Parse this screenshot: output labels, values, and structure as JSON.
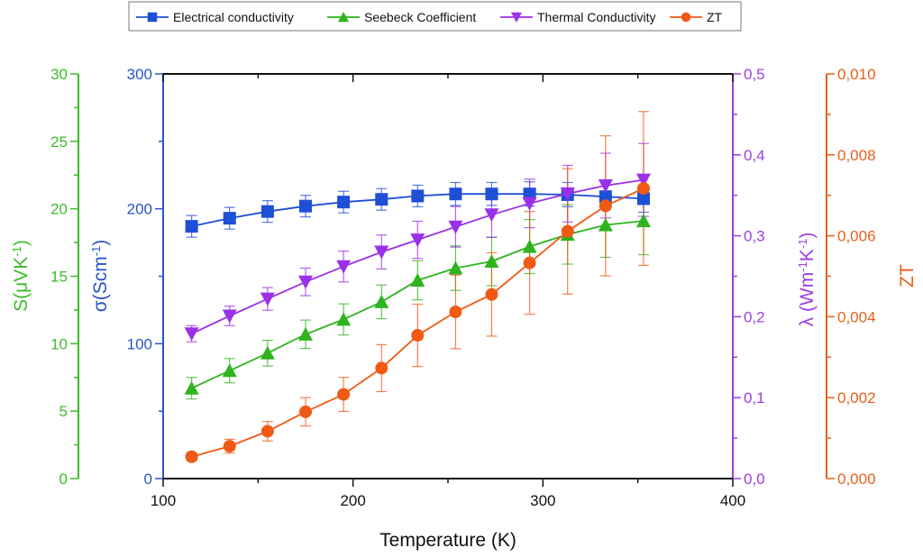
{
  "chart_data": {
    "type": "line",
    "title": "",
    "xlabel": "Temperature (K)",
    "xlim": [
      100,
      400
    ],
    "xticks": [
      "100",
      "200",
      "300",
      "400"
    ],
    "x": [
      115,
      135,
      155,
      175,
      195,
      215,
      234,
      254,
      273,
      293,
      313,
      333,
      353
    ],
    "legend": {
      "placement": "top-center",
      "entries": [
        "Electrical conductivity",
        "Seebeck Coefficient",
        "Thermal Conductivity",
        "ZT"
      ]
    },
    "axes": {
      "sigma": {
        "label_main": "σ(Scm",
        "label_sup": "-1",
        "label_end": ")",
        "ylim": [
          0,
          300
        ],
        "ticks": [
          "0",
          "100",
          "200",
          "300"
        ],
        "color": "#2a52c9"
      },
      "seebeck": {
        "label_main": "S(μVK",
        "label_sup": "-1",
        "label_end": ")",
        "ylim": [
          0,
          30
        ],
        "ticks": [
          "0",
          "5",
          "10",
          "15",
          "20",
          "25",
          "30"
        ],
        "color": "#3dbb2a"
      },
      "lambda": {
        "label_main": "λ (Wm",
        "label_sup1": "-1",
        "label_mid": "K",
        "label_sup2": "-1",
        "label_end": ")",
        "ylim": [
          0,
          0.5
        ],
        "ticks": [
          "0,0",
          "0,1",
          "0,2",
          "0,3",
          "0,4",
          "0,5"
        ],
        "color": "#9b3fe0"
      },
      "zt": {
        "label": "ZT",
        "ylim": [
          0,
          0.01
        ],
        "ticks": [
          "0,000",
          "0,002",
          "0,004",
          "0,006",
          "0,008",
          "0,010"
        ],
        "color": "#e8601c"
      }
    },
    "series": [
      {
        "name": "Electrical conductivity",
        "axis": "sigma",
        "marker": "square",
        "color": "#1f4fd6",
        "values": [
          187,
          193,
          198,
          202,
          205,
          207,
          209.5,
          211,
          211,
          211,
          210.5,
          209,
          207.5
        ],
        "errors": [
          8,
          8,
          8,
          8,
          8,
          8,
          8,
          8.5,
          8.5,
          9,
          9,
          9.5,
          10
        ]
      },
      {
        "name": "Seebeck Coefficient",
        "axis": "seebeck",
        "marker": "triangle-up",
        "color": "#2fb31f",
        "values": [
          6.7,
          8.0,
          9.3,
          10.7,
          11.8,
          13.1,
          14.7,
          15.6,
          16.1,
          17.2,
          18.1,
          18.8,
          19.1
        ],
        "errors": [
          0.8,
          0.9,
          0.95,
          1.05,
          1.15,
          1.25,
          1.45,
          1.65,
          1.8,
          2.0,
          2.2,
          2.4,
          2.5
        ]
      },
      {
        "name": "Thermal Conductivity",
        "axis": "lambda",
        "marker": "triangle-down",
        "color": "#9b30e8",
        "values": [
          0.179,
          0.201,
          0.222,
          0.243,
          0.262,
          0.28,
          0.295,
          0.311,
          0.326,
          0.34,
          0.352,
          0.362,
          0.369
        ],
        "errors": [
          0.01,
          0.012,
          0.014,
          0.017,
          0.019,
          0.021,
          0.023,
          0.025,
          0.028,
          0.03,
          0.035,
          0.04,
          0.045
        ]
      },
      {
        "name": "ZT",
        "axis": "zt",
        "marker": "circle",
        "color": "#f05a14",
        "values": [
          0.00054,
          0.0008,
          0.00117,
          0.00165,
          0.00208,
          0.00273,
          0.00354,
          0.00412,
          0.00455,
          0.00533,
          0.00611,
          0.00674,
          0.00717
        ],
        "errors": [
          0.0001,
          0.00017,
          0.00024,
          0.00035,
          0.00042,
          0.00058,
          0.00077,
          0.00091,
          0.00103,
          0.00127,
          0.00155,
          0.00173,
          0.0019
        ]
      }
    ]
  }
}
